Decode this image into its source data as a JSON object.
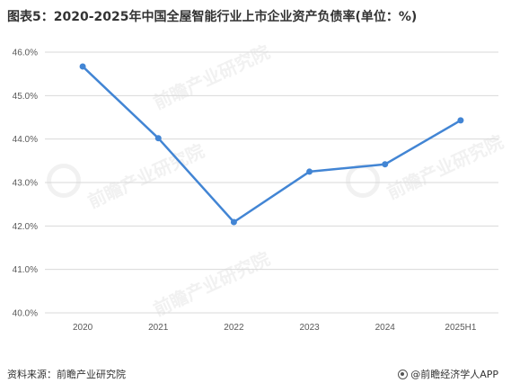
{
  "title": "图表5：2020-2025年中国全屋智能行业上市企业资产负债率(单位：%)",
  "footer": {
    "source": "资料来源：前瞻产业研究院",
    "brand": "@前瞻经济学人APP"
  },
  "watermark": "前瞻产业研究院",
  "colors": {
    "line": "#4285d4",
    "grid": "#d9d9d9",
    "axis_text": "#595959"
  },
  "chart_data": {
    "type": "line",
    "title": "图表5：2020-2025年中国全屋智能行业上市企业资产负债率(单位：%)",
    "categories": [
      "2020",
      "2021",
      "2022",
      "2023",
      "2024",
      "2025H1"
    ],
    "series": [
      {
        "values": [
          45.67,
          44.02,
          42.09,
          43.25,
          43.42,
          44.43
        ]
      }
    ],
    "y_ticks": [
      "40.0%",
      "41.0%",
      "42.0%",
      "43.0%",
      "44.0%",
      "45.0%",
      "46.0%"
    ],
    "ylim": [
      40,
      46
    ],
    "grid": true,
    "legend": "none"
  }
}
